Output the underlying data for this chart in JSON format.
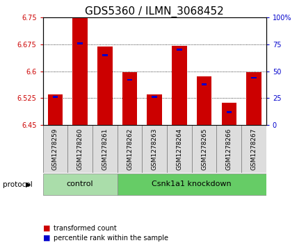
{
  "title": "GDS5360 / ILMN_3068452",
  "samples": [
    "GSM1278259",
    "GSM1278260",
    "GSM1278261",
    "GSM1278262",
    "GSM1278263",
    "GSM1278264",
    "GSM1278265",
    "GSM1278266",
    "GSM1278267"
  ],
  "transformed_counts": [
    6.535,
    6.748,
    6.669,
    6.597,
    6.535,
    6.671,
    6.586,
    6.513,
    6.597
  ],
  "percentile_ranks": [
    26,
    76,
    65,
    42,
    26,
    70,
    38,
    12,
    44
  ],
  "base_value": 6.45,
  "ylim": [
    6.45,
    6.75
  ],
  "y_ticks": [
    6.45,
    6.525,
    6.6,
    6.675,
    6.75
  ],
  "right_yticks": [
    0,
    25,
    50,
    75,
    100
  ],
  "bar_color": "#cc0000",
  "percentile_color": "#0000cc",
  "bar_width": 0.6,
  "n_control": 3,
  "control_label": "control",
  "knockdown_label": "Csnk1a1 knockdown",
  "protocol_label": "protocol",
  "control_color": "#aaddaa",
  "knockdown_color": "#66cc66",
  "legend_bar_label": "transformed count",
  "legend_pct_label": "percentile rank within the sample",
  "title_fontsize": 11,
  "tick_fontsize": 7,
  "ylabel_color": "#cc0000",
  "right_ylabel_color": "#0000cc",
  "sample_bg_color": "#dddddd",
  "plot_bg_color": "#ffffff"
}
